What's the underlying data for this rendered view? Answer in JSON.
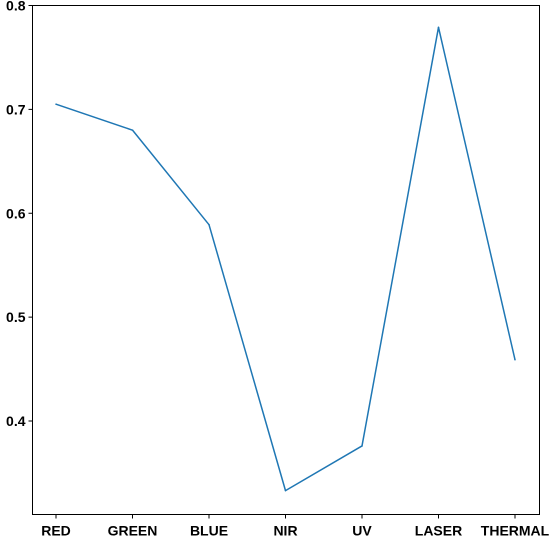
{
  "chart_data": {
    "type": "line",
    "title": "",
    "xlabel": "",
    "ylabel": "",
    "categories": [
      "RED",
      "GREEN",
      "BLUE",
      "NIR",
      "UV",
      "LASER",
      "THERMAL"
    ],
    "series": [
      {
        "values": [
          0.705,
          0.68,
          0.589,
          0.333,
          0.376,
          0.779,
          0.459
        ]
      }
    ],
    "ylim": [
      0.31,
      0.8
    ],
    "yticks": [
      0.4,
      0.5,
      0.6,
      0.7,
      0.8
    ],
    "ytick_labels": [
      "0.4",
      "0.5",
      "0.6",
      "0.7",
      "0.8"
    ],
    "grid": false,
    "legend": "none",
    "colors": {
      "line": "#1f77b4",
      "axes": "#000000"
    }
  }
}
